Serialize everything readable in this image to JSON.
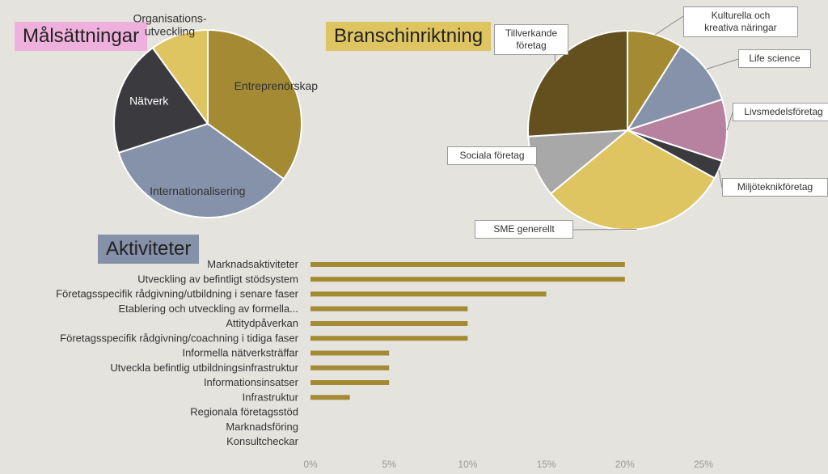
{
  "colors": {
    "background": "#e4e3de",
    "bar": "#a48a33",
    "malsattningar_header": "#eeb0dc",
    "bransch_header": "#dfc462",
    "aktiviteter_header": "#8591a8"
  },
  "chart_data": [
    {
      "type": "pie",
      "title": "Målsättningar",
      "slices": [
        {
          "label": "Entreprenörskap",
          "value": 35,
          "color": "#a48a33"
        },
        {
          "label": "Internationalisering",
          "value": 35,
          "color": "#8592aa"
        },
        {
          "label": "Nätverk",
          "value": 20,
          "color": "#3a3a3f"
        },
        {
          "label": "Organisations- utveckling",
          "value": 10,
          "color": "#dfc462"
        }
      ]
    },
    {
      "type": "pie",
      "title": "Branschinriktning",
      "slices": [
        {
          "label": "Kulturella och kreativa näringar",
          "value": 9,
          "color": "#a48a33"
        },
        {
          "label": "Life science",
          "value": 11,
          "color": "#8592aa"
        },
        {
          "label": "Livsmedelsföretag",
          "value": 10,
          "color": "#b6829f"
        },
        {
          "label": "Miljöteknikföretag",
          "value": 3,
          "color": "#3a3a3f"
        },
        {
          "label": "SME generellt",
          "value": 31,
          "color": "#dfc462"
        },
        {
          "label": "Sociala företag",
          "value": 10,
          "color": "#a8a8a8"
        },
        {
          "label": "Tillverkande företag",
          "value": 26,
          "color": "#63501e"
        }
      ]
    },
    {
      "type": "bar",
      "orientation": "horizontal",
      "title": "Aktiviteter",
      "categories": [
        "Marknadsaktiviteter",
        "Utveckling av befintligt stödsystem",
        "Företagsspecifik rådgivning/utbildning i senare faser",
        "Etablering och utveckling av formella...",
        "Attitydpåverkan",
        "Företagsspecifik rådgivning/coachning i tidiga faser",
        "Informella nätverksträffar",
        "Utveckla befintlig utbildningsinfrastruktur",
        "Informationsinsatser",
        "Infrastruktur",
        "Regionala företagsstöd",
        "Marknadsföring",
        "Konsultcheckar"
      ],
      "values": [
        20,
        20,
        15,
        10,
        10,
        10,
        5,
        5,
        5,
        2.5,
        0,
        0,
        0
      ],
      "xlim": [
        0,
        25
      ],
      "xticks": [
        "0%",
        "5%",
        "10%",
        "15%",
        "20%",
        "25%"
      ],
      "grid": false
    }
  ]
}
